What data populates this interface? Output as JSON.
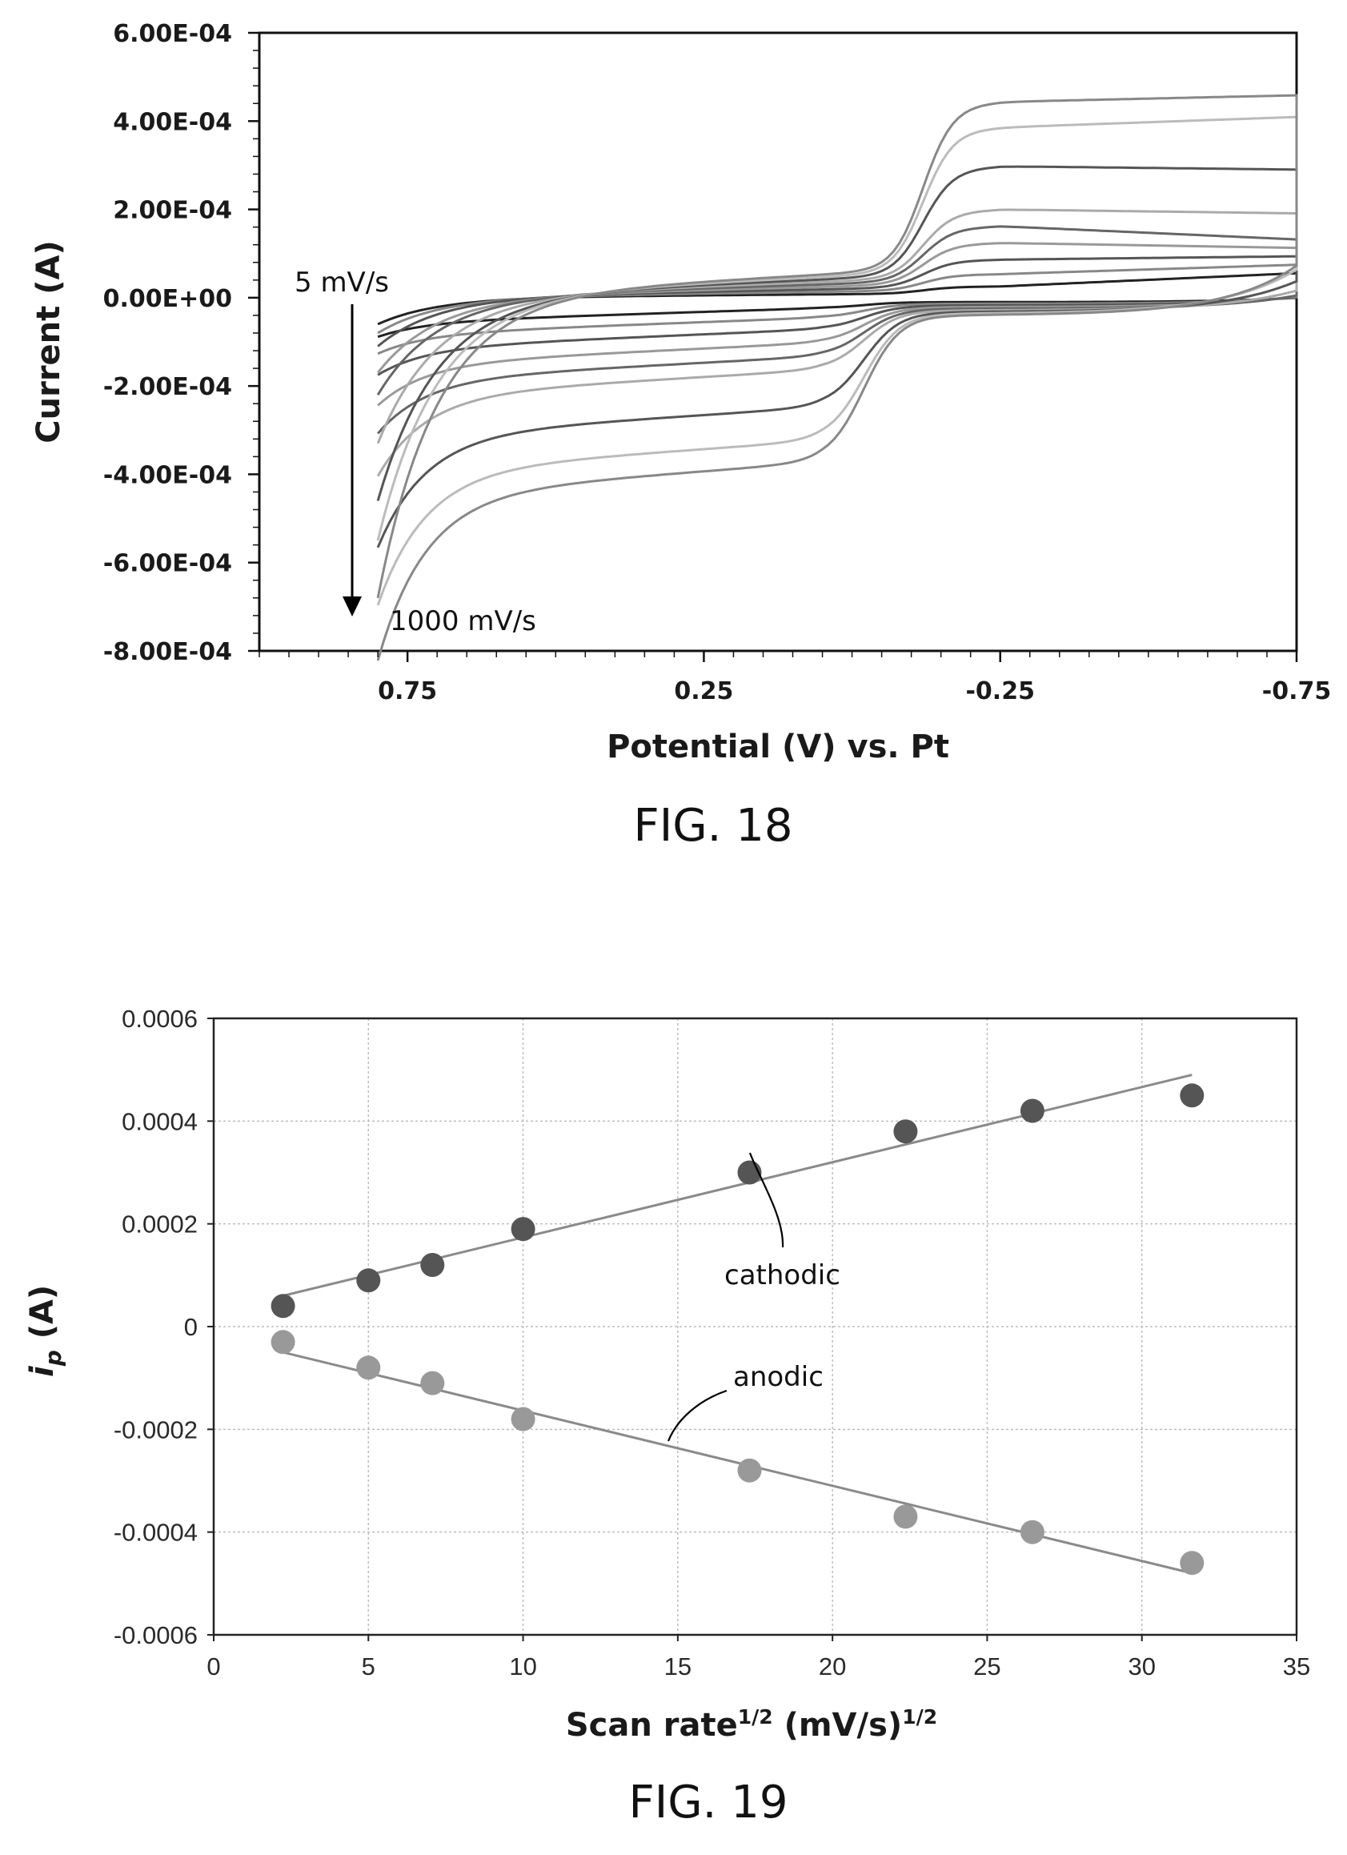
{
  "chart_data": [
    {
      "figure_caption": "FIG. 18",
      "type": "line",
      "xlabel": "Potential (V) vs. Pt",
      "ylabel": "Current (A)",
      "x_reversed": true,
      "xlim": [
        1.0,
        -0.75
      ],
      "ylim": [
        -0.0008,
        0.0006
      ],
      "x_ticks": [
        0.75,
        0.25,
        -0.25,
        -0.75
      ],
      "x_tick_labels": [
        "0.75",
        "0.25",
        "-0.25",
        "-0.75"
      ],
      "y_ticks": [
        0.0006,
        0.0004,
        0.0002,
        0.0,
        -0.0002,
        -0.0004,
        -0.0006,
        -0.0008
      ],
      "y_tick_labels": [
        "6.00E-04",
        "4.00E-04",
        "2.00E-04",
        "0.00E+00",
        "-2.00E-04",
        "-4.00E-04",
        "-6.00E-04",
        "-8.00E-04"
      ],
      "annotations": [
        "5 mV/s",
        "1000 mV/s"
      ],
      "grid": false,
      "series_count": 9,
      "series": [
        {
          "lo": -6e-05,
          "hi": 4e-05,
          "plat": 1.5e-05,
          "color": "#222222"
        },
        {
          "lo": -8e-05,
          "hi": 6e-05,
          "plat": 3.5e-05,
          "color": "#888888"
        },
        {
          "lo": -0.00011,
          "hi": 8e-05,
          "plat": 6e-05,
          "color": "#555555"
        },
        {
          "lo": -0.00017,
          "hi": 0.0001,
          "plat": 9e-05,
          "color": "#999999"
        },
        {
          "lo": -0.00022,
          "hi": 0.00012,
          "plat": 0.00012,
          "color": "#666666"
        },
        {
          "lo": -0.00033,
          "hi": 0.00018,
          "plat": 0.00015,
          "color": "#aaaaaa"
        },
        {
          "lo": -0.00046,
          "hi": 0.00028,
          "plat": 0.00024,
          "color": "#555555"
        },
        {
          "lo": -0.00055,
          "hi": 0.0004,
          "plat": 0.00032,
          "color": "#bbbbbb"
        },
        {
          "lo": -0.00068,
          "hi": 0.00045,
          "plat": 0.00037,
          "color": "#888888"
        }
      ]
    },
    {
      "figure_caption": "FIG. 19",
      "type": "scatter",
      "xlabel": "Scan rate",
      "xlabel_sup1": "1/2",
      "xlabel_mid": " (mV/s)",
      "xlabel_sup2": "1/2",
      "ylabel_main": "i",
      "ylabel_sub": "p",
      "ylabel_unit": " (A)",
      "xlim": [
        0,
        35
      ],
      "ylim": [
        -0.0006,
        0.0006
      ],
      "x_ticks": [
        0,
        5,
        10,
        15,
        20,
        25,
        30,
        35
      ],
      "x_tick_labels": [
        "0",
        "5",
        "10",
        "15",
        "20",
        "25",
        "30",
        "35"
      ],
      "y_ticks": [
        0.0006,
        0.0004,
        0.0002,
        0,
        -0.0002,
        -0.0004,
        -0.0006
      ],
      "y_tick_labels": [
        "0.0006",
        "0.0004",
        "0.0002",
        "0",
        "-0.0002",
        "-0.0004",
        "-0.0006"
      ],
      "grid": true,
      "series": [
        {
          "name": "cathodic",
          "color": "#555555",
          "x": [
            2.24,
            5.0,
            7.07,
            10.0,
            17.32,
            22.36,
            26.46,
            31.62
          ],
          "y": [
            4e-05,
            9e-05,
            0.00012,
            0.00019,
            0.0003,
            0.00038,
            0.00042,
            0.00045
          ],
          "trend": [
            [
              2.24,
              6e-05
            ],
            [
              31.62,
              0.00049
            ]
          ]
        },
        {
          "name": "anodic",
          "color": "#999999",
          "x": [
            2.24,
            5.0,
            7.07,
            10.0,
            17.32,
            22.36,
            26.46,
            31.62
          ],
          "y": [
            -3e-05,
            -8e-05,
            -0.00011,
            -0.00018,
            -0.00028,
            -0.00037,
            -0.0004,
            -0.00046
          ],
          "trend": [
            [
              2.24,
              -5e-05
            ],
            [
              31.62,
              -0.00048
            ]
          ]
        }
      ]
    }
  ]
}
